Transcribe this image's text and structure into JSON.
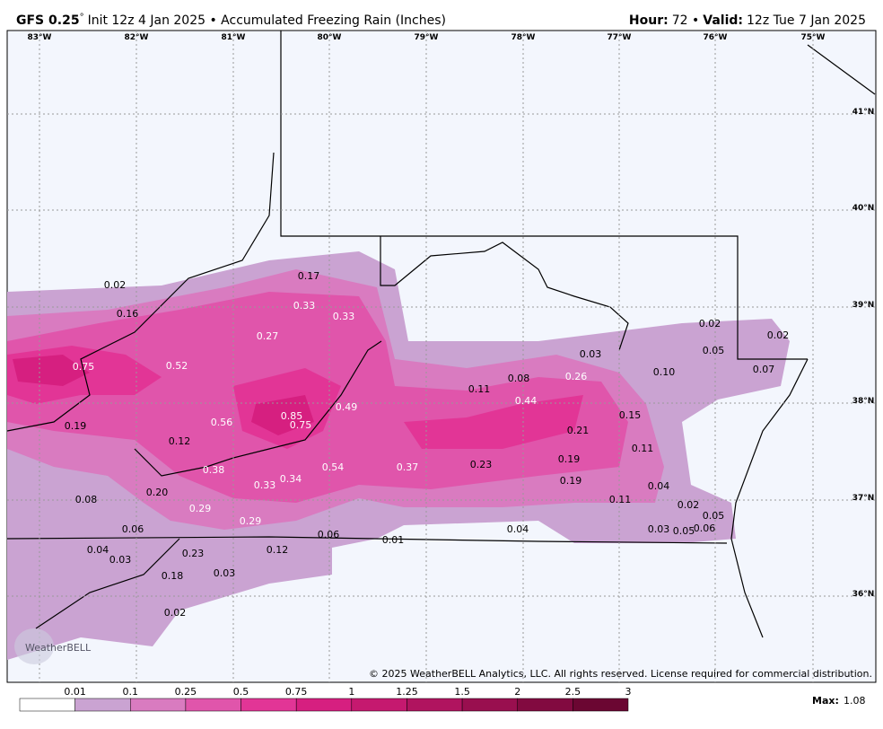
{
  "header": {
    "model": "GFS 0.25",
    "degree": "°",
    "init": "Init 12z 4 Jan 2025 • Accumulated Freezing Rain (Inches)",
    "hour_label": "Hour:",
    "hour": "72 •",
    "valid_label": "Valid:",
    "valid": "12z Tue 7 Jan 2025"
  },
  "longitudes": [
    "83°W",
    "82°W",
    "81°W",
    "80°W",
    "79°W",
    "78°W",
    "77°W",
    "76°W",
    "75°W"
  ],
  "latitudes": [
    "41°N",
    "40°N",
    "39°N",
    "38°N",
    "37°N",
    "36°N"
  ],
  "point_values": [
    "0.02",
    "0.16",
    "0.17",
    "0.33",
    "0.33",
    "0.27",
    "0.75",
    "0.52",
    "0.19",
    "0.12",
    "0.56",
    "0.85",
    "0.75",
    "0.49",
    "0.38",
    "0.54",
    "0.37",
    "0.33",
    "0.34",
    "0.20",
    "0.08",
    "0.29",
    "0.29",
    "0.06",
    "0.06",
    "0.01",
    "0.04",
    "0.04",
    "0.03",
    "0.23",
    "0.12",
    "0.18",
    "0.03",
    "0.02",
    "0.11",
    "0.08",
    "0.26",
    "0.44",
    "0.03",
    "0.15",
    "0.21",
    "0.23",
    "0.19",
    "0.19",
    "0.11",
    "0.04",
    "0.11",
    "0.02",
    "0.05",
    "0.03",
    "0.05",
    "0.06",
    "0.10",
    "0.02",
    "0.05",
    "0.02",
    "0.07"
  ],
  "colorbar": {
    "labels": [
      "0.01",
      "0.1",
      "0.25",
      "0.5",
      "0.75",
      "1",
      "1.25",
      "1.5",
      "2",
      "2.5",
      "3"
    ],
    "colors": [
      "#ffffff",
      "#caa3d2",
      "#d97bc0",
      "#e055ab",
      "#e23596",
      "#d61f80",
      "#c5196f",
      "#b0145f",
      "#990f4f",
      "#820a40",
      "#6b0632"
    ]
  },
  "max_label": "Max:",
  "max": "1.08",
  "logo": "WeatherBELL",
  "copyright": "© 2025 WeatherBELL Analytics, LLC. All rights reserved. License required for commercial distribution."
}
